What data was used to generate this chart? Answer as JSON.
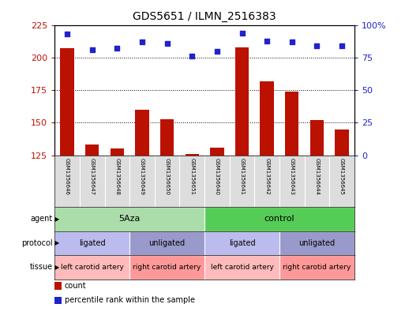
{
  "title": "GDS5651 / ILMN_2516383",
  "samples": [
    "GSM1356646",
    "GSM1356647",
    "GSM1356648",
    "GSM1356649",
    "GSM1356650",
    "GSM1356651",
    "GSM1356640",
    "GSM1356641",
    "GSM1356642",
    "GSM1356643",
    "GSM1356644",
    "GSM1356645"
  ],
  "bar_values": [
    207,
    133,
    130,
    160,
    153,
    126,
    131,
    208,
    182,
    174,
    152,
    145
  ],
  "dot_values": [
    93,
    81,
    82,
    87,
    86,
    76,
    80,
    94,
    88,
    87,
    84,
    84
  ],
  "bar_color": "#bb1100",
  "dot_color": "#2222cc",
  "ylim_left": [
    125,
    225
  ],
  "ylim_right": [
    0,
    100
  ],
  "yticks_left": [
    125,
    150,
    175,
    200,
    225
  ],
  "yticks_right": [
    0,
    25,
    50,
    75,
    100
  ],
  "grid_values": [
    150,
    175,
    200
  ],
  "agent_groups": [
    {
      "label": "5Aza",
      "start": 0,
      "end": 6,
      "color": "#aaddaa"
    },
    {
      "label": "control",
      "start": 6,
      "end": 12,
      "color": "#55cc55"
    }
  ],
  "protocol_groups": [
    {
      "label": "ligated",
      "start": 0,
      "end": 3,
      "color": "#bbbbee"
    },
    {
      "label": "unligated",
      "start": 3,
      "end": 6,
      "color": "#9999cc"
    },
    {
      "label": "ligated",
      "start": 6,
      "end": 9,
      "color": "#bbbbee"
    },
    {
      "label": "unligated",
      "start": 9,
      "end": 12,
      "color": "#9999cc"
    }
  ],
  "tissue_groups": [
    {
      "label": "left carotid artery",
      "start": 0,
      "end": 3,
      "color": "#ffbbbb"
    },
    {
      "label": "right carotid artery",
      "start": 3,
      "end": 6,
      "color": "#ff9999"
    },
    {
      "label": "left carotid artery",
      "start": 6,
      "end": 9,
      "color": "#ffbbbb"
    },
    {
      "label": "right carotid artery",
      "start": 9,
      "end": 12,
      "color": "#ff9999"
    }
  ],
  "row_labels": [
    "agent",
    "protocol",
    "tissue"
  ],
  "legend_items": [
    {
      "color": "#bb1100",
      "label": "count"
    },
    {
      "color": "#2222cc",
      "label": "percentile rank within the sample"
    }
  ],
  "sample_bg": "#dddddd"
}
